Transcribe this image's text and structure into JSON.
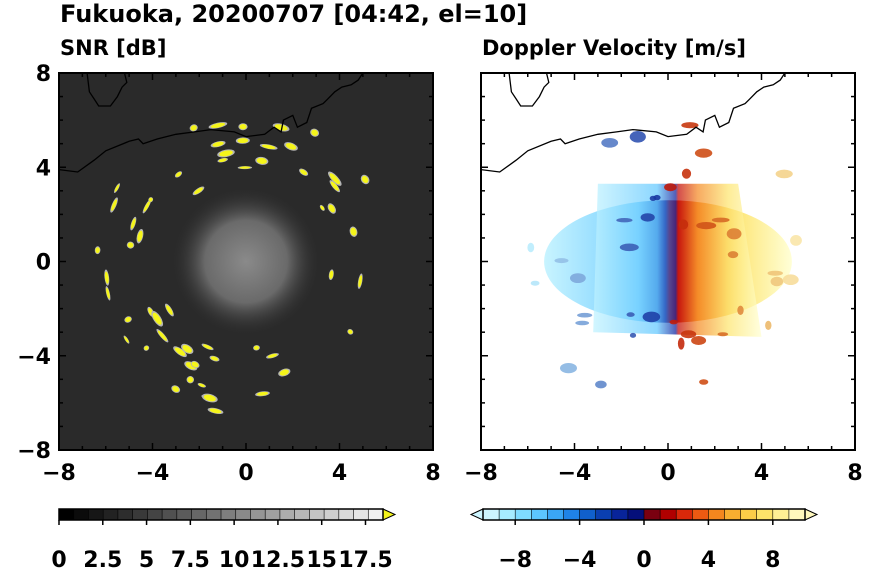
{
  "header": {
    "title": "Fukuoka, 20200707 [04:42, el=10]"
  },
  "colors": {
    "snr_background": "#2a2a2a",
    "snr_echo_strong": "#f5f51a",
    "snr_echo_weak": "#b4b4b4",
    "coastline": "#000000",
    "vel_negative_dark": "#0a1a9a",
    "vel_negative_light": "#bff2ff",
    "vel_zero": "#ffffff",
    "vel_positive_dark": "#c00000",
    "vel_positive_light": "#ffffd0"
  },
  "chart_data": [
    {
      "type": "heatmap",
      "title": "SNR [dB]",
      "xlim": [
        -8,
        8
      ],
      "ylim": [
        -8,
        8
      ],
      "xticks": [
        "−8",
        "−4",
        "0",
        "4",
        "8"
      ],
      "yticks": [
        "8",
        "4",
        "0",
        "−4",
        "−8"
      ],
      "colorbar": {
        "min": 0,
        "max": 18.5,
        "extend": "max",
        "ticks": [
          "0",
          "2.5",
          "5",
          "7.5",
          "10",
          "12.5",
          "15",
          "17.5"
        ],
        "colors": [
          "#000000",
          "#0b0b0b",
          "#161616",
          "#222222",
          "#2d2d2d",
          "#393939",
          "#444444",
          "#505050",
          "#5b5b5b",
          "#676767",
          "#727272",
          "#7e7e7e",
          "#898989",
          "#959595",
          "#a0a0a0",
          "#acacac",
          "#b7b7b7",
          "#c3c3c3",
          "#cecece",
          "#dadada",
          "#e5e5e5",
          "#f1f1f1",
          "#f5f51a"
        ]
      },
      "echo_ring_radius_km": [
        3.5,
        6.5
      ],
      "grid": false
    },
    {
      "type": "heatmap",
      "title": "Doppler Velocity [m/s]",
      "xlim": [
        -8,
        8
      ],
      "ylim": [
        -8,
        8
      ],
      "xticks": [
        "−8",
        "−4",
        "0",
        "4",
        "8"
      ],
      "yticks": [
        "8",
        "4",
        "0",
        "−4",
        "−8"
      ],
      "colorbar": {
        "min": -10,
        "max": 10,
        "extend": "both",
        "ticks": [
          "−8",
          "−4",
          "0",
          "4",
          "8"
        ],
        "colors": [
          "#cdf5ff",
          "#a6ecff",
          "#7fdcff",
          "#5cc6ff",
          "#3aa6f5",
          "#1f83e6",
          "#1060cc",
          "#0a3fb0",
          "#08249a",
          "#050f7a",
          "#7a0010",
          "#b00000",
          "#d8280a",
          "#ec5a12",
          "#f4861e",
          "#f8ae30",
          "#fbcd48",
          "#fde46a",
          "#fff094",
          "#fff8bd"
        ]
      },
      "grid": false
    }
  ]
}
